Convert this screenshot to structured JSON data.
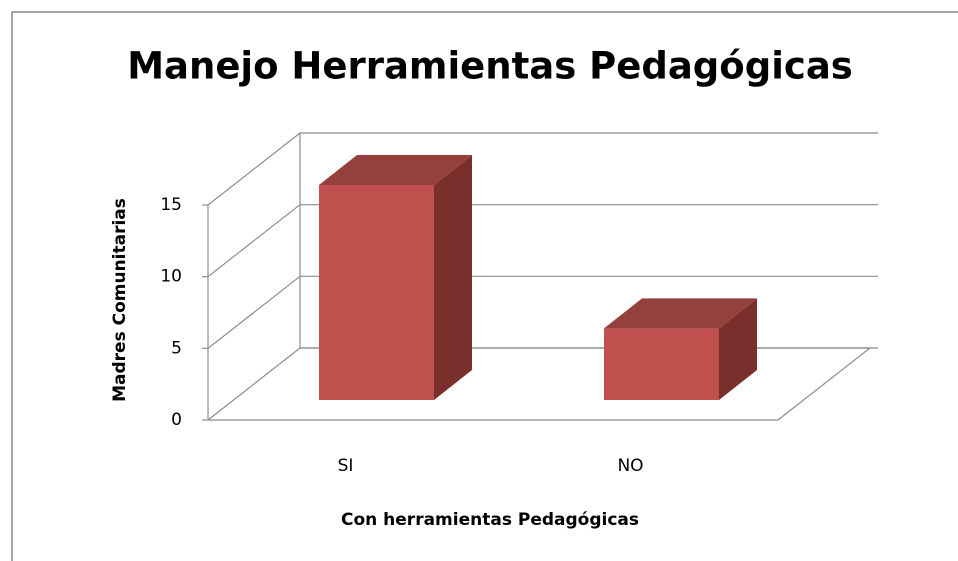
{
  "chart_data": {
    "type": "bar3d",
    "title": "Manejo Herramientas Pedagógicas",
    "categories": [
      "SI",
      "NO"
    ],
    "values": [
      15,
      5
    ],
    "color": "#c0504d",
    "ylim": [
      0,
      15
    ],
    "yticks": [
      0,
      5,
      10,
      15
    ],
    "grid": true,
    "xlabel": "Con herramientas Pedagógicas",
    "ylabel": "Madres Comunitarias"
  }
}
